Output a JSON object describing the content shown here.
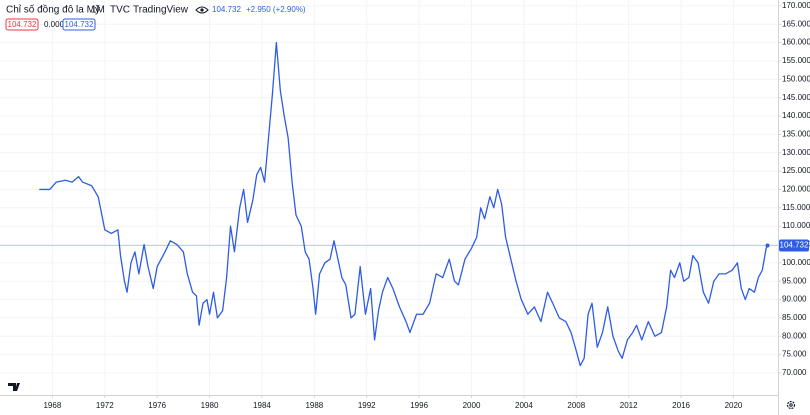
{
  "chart_data": {
    "type": "line",
    "title": "Chỉ số đồng đô la Mỹ",
    "interval": "1M",
    "exchange": "TVC",
    "source": "TradingView",
    "header_price": "104.732",
    "header_change": "+2.950 (+2.90%)",
    "legend_values": [
      "104.732",
      "0.000",
      "104.732"
    ],
    "last_label": "104.732",
    "xlim": [
      1964,
      2023.4
    ],
    "ylim": [
      64,
      171.6
    ],
    "xticks": [
      1968,
      1972,
      1976,
      1980,
      1984,
      1988,
      1992,
      1996,
      2000,
      2004,
      2008,
      2012,
      2016,
      2020
    ],
    "yticks": [
      {
        "value": 70,
        "label": "70.000"
      },
      {
        "value": 75,
        "label": "75.000"
      },
      {
        "value": 80,
        "label": "80.000"
      },
      {
        "value": 85,
        "label": "85.000"
      },
      {
        "value": 90,
        "label": "90.000"
      },
      {
        "value": 95,
        "label": "95.000"
      },
      {
        "value": 100,
        "label": "100.000"
      },
      {
        "value": 105,
        "label": "105.000"
      },
      {
        "value": 110,
        "label": "110.000"
      },
      {
        "value": 115,
        "label": "115.000"
      },
      {
        "value": 120,
        "label": "120.000"
      },
      {
        "value": 125,
        "label": "125.000"
      },
      {
        "value": 130,
        "label": "130.000"
      },
      {
        "value": 135,
        "label": "135.000"
      },
      {
        "value": 140,
        "label": "140.000"
      },
      {
        "value": 145,
        "label": "145.000"
      },
      {
        "value": 150,
        "label": "150.000"
      },
      {
        "value": 155,
        "label": "155.000"
      },
      {
        "value": 160,
        "label": "160.000"
      },
      {
        "value": 165,
        "label": "165.000"
      },
      {
        "value": 170,
        "label": "170.000"
      }
    ],
    "grid": true,
    "series": [
      {
        "name": "Chỉ số đồng đô la Mỹ",
        "color": "#2e5ce6",
        "x": [
          1967.0,
          1967.8,
          1968.3,
          1969.0,
          1969.5,
          1970.0,
          1970.3,
          1971.0,
          1971.5,
          1972.0,
          1972.5,
          1973.0,
          1973.2,
          1973.5,
          1973.7,
          1974.0,
          1974.3,
          1974.6,
          1975.0,
          1975.3,
          1975.7,
          1976.0,
          1976.3,
          1976.6,
          1977.0,
          1977.5,
          1978.0,
          1978.3,
          1978.7,
          1979.0,
          1979.2,
          1979.5,
          1979.8,
          1980.0,
          1980.3,
          1980.6,
          1981.0,
          1981.3,
          1981.6,
          1981.9,
          1982.3,
          1982.6,
          1982.9,
          1983.3,
          1983.6,
          1983.9,
          1984.2,
          1984.5,
          1984.8,
          1985.1,
          1985.4,
          1985.7,
          1986.0,
          1986.3,
          1986.6,
          1987.0,
          1987.3,
          1987.6,
          1987.9,
          1988.1,
          1988.4,
          1988.8,
          1989.2,
          1989.5,
          1989.8,
          1990.1,
          1990.4,
          1990.8,
          1991.1,
          1991.5,
          1991.9,
          1992.3,
          1992.6,
          1992.9,
          1993.2,
          1993.6,
          1994.0,
          1994.5,
          1995.0,
          1995.3,
          1995.8,
          1996.3,
          1996.8,
          1997.3,
          1997.8,
          1998.3,
          1998.7,
          1999.0,
          1999.5,
          2000.0,
          2000.4,
          2000.7,
          2001.0,
          2001.4,
          2001.7,
          2002.0,
          2002.3,
          2002.6,
          2003.0,
          2003.4,
          2003.8,
          2004.3,
          2004.8,
          2005.3,
          2005.8,
          2006.2,
          2006.7,
          2007.2,
          2007.6,
          2008.0,
          2008.3,
          2008.6,
          2008.9,
          2009.2,
          2009.6,
          2010.0,
          2010.4,
          2010.8,
          2011.2,
          2011.5,
          2011.9,
          2012.3,
          2012.6,
          2013.0,
          2013.5,
          2014.0,
          2014.5,
          2014.9,
          2015.2,
          2015.5,
          2015.9,
          2016.2,
          2016.6,
          2016.9,
          2017.3,
          2017.7,
          2018.1,
          2018.5,
          2018.9,
          2019.4,
          2019.9,
          2020.3,
          2020.6,
          2020.9,
          2021.2,
          2021.6,
          2021.9,
          2022.2,
          2022.5,
          2022.6
        ],
        "values": [
          120,
          120,
          122,
          122.5,
          122,
          123.5,
          122,
          121,
          118,
          109,
          108,
          109,
          102,
          95,
          92,
          100,
          103,
          97,
          105,
          99,
          93,
          99,
          101,
          103,
          106,
          105,
          103,
          97,
          92,
          91,
          83,
          89,
          90,
          86,
          92,
          85,
          87,
          96,
          110,
          103,
          115,
          120,
          111,
          117,
          124,
          126,
          122,
          134,
          146,
          160,
          147,
          140,
          134,
          122,
          113,
          110,
          103,
          101,
          93,
          86,
          97,
          100,
          101,
          106,
          101,
          96,
          94,
          85,
          86,
          99,
          86,
          93,
          79,
          87,
          92,
          96,
          93,
          88,
          84,
          81,
          86,
          86,
          89,
          97,
          96,
          101,
          95,
          94,
          101,
          104,
          107,
          115,
          112,
          118,
          115,
          120,
          116,
          107,
          101,
          95,
          90,
          86,
          88,
          84,
          92,
          89,
          85,
          84,
          81,
          76,
          72,
          74,
          86,
          89,
          77,
          81,
          88,
          80,
          76,
          74,
          79,
          81,
          83,
          79,
          84,
          80,
          81,
          88,
          98,
          96,
          100,
          95,
          96,
          102,
          100,
          92,
          89,
          95,
          97,
          97,
          98,
          100,
          93,
          90,
          93,
          92,
          96,
          98,
          104,
          104.732
        ]
      }
    ]
  }
}
